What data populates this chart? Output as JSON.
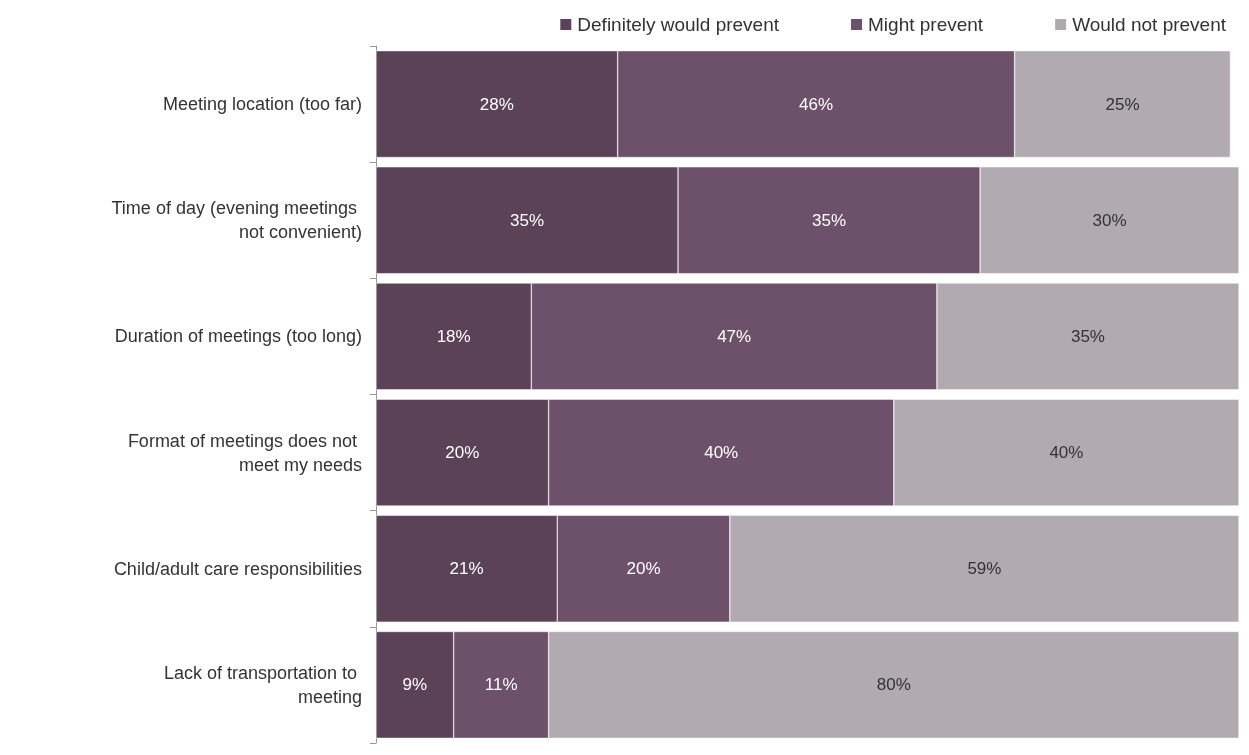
{
  "chart_data": {
    "type": "bar",
    "orientation": "horizontal",
    "stacked": true,
    "legend": "top",
    "categories": [
      "Meeting location (too far)",
      "Time of day (evening meetings not convenient)",
      "Duration of meetings (too long)",
      "Format of meetings does not meet my needs",
      "Child/adult care responsibilities",
      "Lack of transportation to meeting"
    ],
    "series": [
      {
        "name": "Definitely would prevent",
        "color": "#5b4257",
        "values": [
          28,
          35,
          18,
          20,
          21,
          9
        ],
        "value_labels": [
          "28%",
          "35%",
          "18%",
          "20%",
          "21%",
          "9%"
        ]
      },
      {
        "name": "Might prevent",
        "color": "#6d516a",
        "values": [
          46,
          35,
          47,
          40,
          20,
          11
        ],
        "value_labels": [
          "46%",
          "35%",
          "47%",
          "40%",
          "20%",
          "11%"
        ]
      },
      {
        "name": "Would not prevent",
        "color": "#b1aab1",
        "values": [
          25,
          30,
          35,
          40,
          59,
          80
        ],
        "value_labels": [
          "25%",
          "30%",
          "35%",
          "40%",
          "59%",
          "80%"
        ]
      }
    ]
  }
}
